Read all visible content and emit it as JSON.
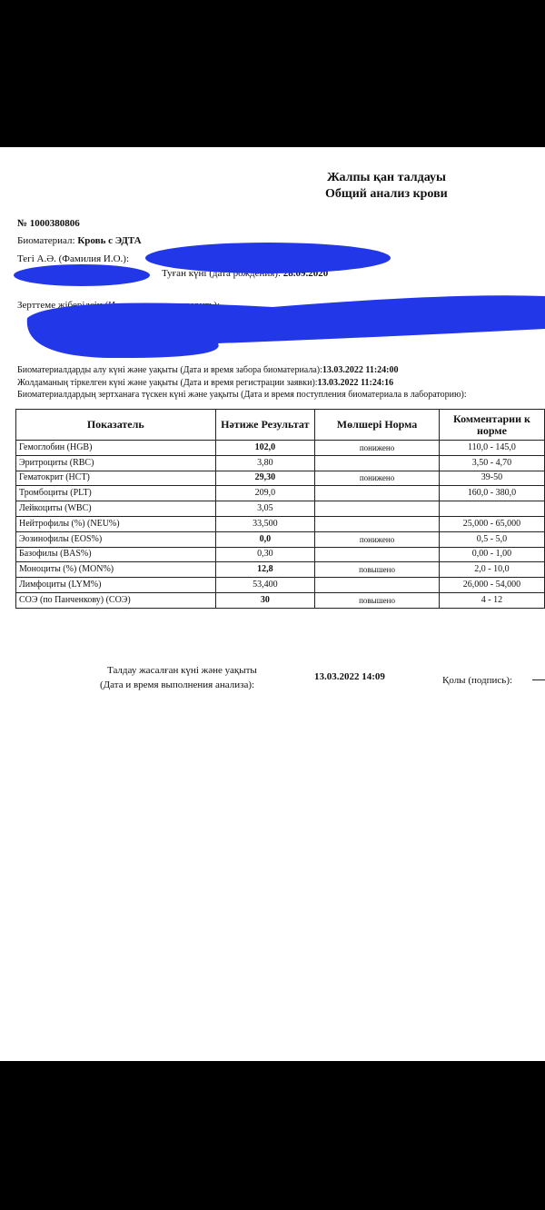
{
  "header": {
    "title_kz": "Жалпы қан талдауы",
    "title_ru": "Общий анализ крови"
  },
  "info": {
    "number": "№ 1000380806",
    "biomaterial_label": "Биоматериал:",
    "biomaterial": "Кровь с ЭДТА",
    "name_label": "Тегі А.Ә. (Фамилия И.О.):",
    "birth_label": "Туған күні (дата рождения):",
    "birth_date": "28.09.2020",
    "referral_label": "Зерттеме жіберілсін (Исследование направить):"
  },
  "dates": [
    {
      "label": "Биоматериалдарды алу күні және уақыты (Дата и время забора биоматериала):",
      "value": "13.03.2022 11:24:00"
    },
    {
      "label": "Жолдаманың тіркелген күні және уақыты (Дата и время регистрации заявки):",
      "value": "13.03.2022 11:24:16"
    },
    {
      "label": "Биоматериалдардың зертханаға түскен күні және уақыты (Дата и время поступления биоматериала в лабораторию):",
      "value": null
    }
  ],
  "table": {
    "headers": [
      "Показатель",
      "Нәтиже Результат",
      "Мөлшері Норма",
      "Комментарии к норме"
    ],
    "rows": [
      [
        "Гемоглобин (HGB)",
        "102,0",
        "понижено",
        "110,0 - 145,0"
      ],
      [
        "Эритроциты (RBC)",
        "3,80",
        null,
        "3,50 - 4,70"
      ],
      [
        "Гематокрит (HCT)",
        "29,30",
        "понижено",
        "39-50"
      ],
      [
        "Тромбоциты (PLT)",
        "209,0",
        null,
        "160,0 - 380,0"
      ],
      [
        "Лейкоциты (WBC)",
        "3,05",
        null,
        null
      ],
      [
        "Нейтрофилы (%) (NEU%)",
        "33,500",
        null,
        "25,000 - 65,000"
      ],
      [
        "Эозинофилы (EOS%)",
        "0,0",
        "понижено",
        "0,5 - 5,0"
      ],
      [
        "Базофилы (BAS%)",
        "0,30",
        null,
        "0,00 - 1,00"
      ],
      [
        "Моноциты (%) (MON%)",
        "12,8",
        "повышено",
        "2,0 - 10,0"
      ],
      [
        "Лимфоциты (LYM%)",
        "53,400",
        null,
        "26,000 - 54,000"
      ],
      [
        "СОЭ (по Панченкову) (СОЭ)",
        "30",
        "повышено",
        "4 - 12"
      ]
    ]
  },
  "footer": {
    "label_kz": "Талдау жасалған күні және уақыты",
    "label_ru": "(Дата и время выполнения анализа):",
    "datetime": "13.03.2022 14:09",
    "signature_label": "Қолы (подпись):"
  }
}
